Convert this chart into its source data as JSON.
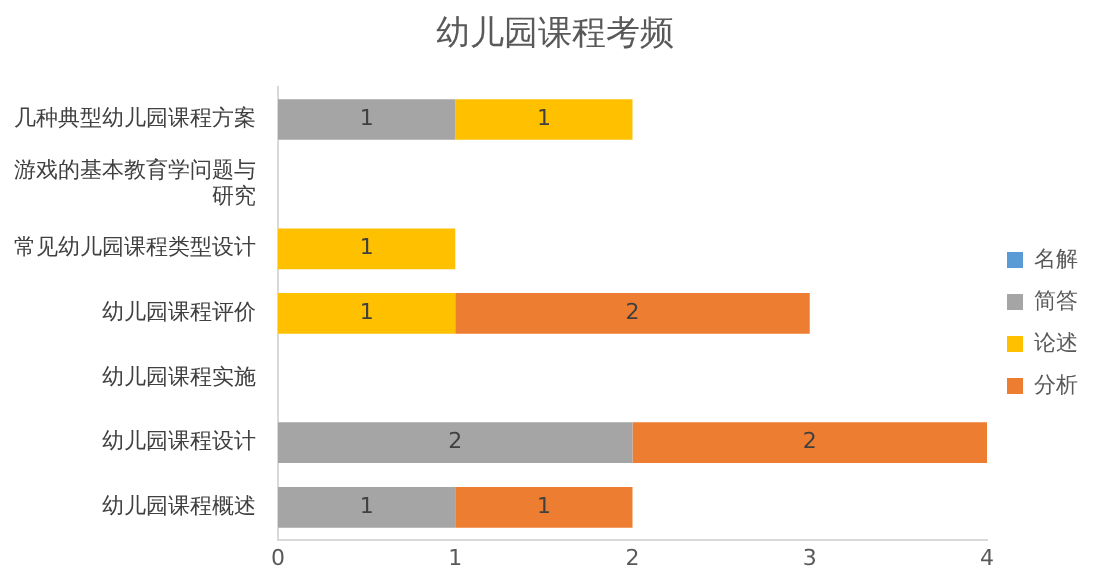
{
  "chart_data": {
    "type": "bar",
    "orientation": "horizontal",
    "stacked": true,
    "title": "幼儿园课程考频",
    "categories": [
      "几种典型幼儿园课程方案",
      "游戏的基本教育学问题与研究",
      "常见幼儿园课程类型设计",
      "幼儿园课程评价",
      "幼儿园课程实施",
      "幼儿园课程设计",
      "幼儿园课程概述"
    ],
    "series": [
      {
        "name": "名解",
        "color": "#5b9bd5",
        "values": [
          null,
          null,
          null,
          null,
          null,
          null,
          null
        ]
      },
      {
        "name": "简答",
        "color": "#a5a5a5",
        "values": [
          1,
          null,
          null,
          null,
          null,
          2,
          1
        ]
      },
      {
        "name": "论述",
        "color": "#ffc000",
        "values": [
          1,
          null,
          1,
          1,
          null,
          null,
          null
        ]
      },
      {
        "name": "分析",
        "color": "#ed7d31",
        "values": [
          null,
          null,
          null,
          2,
          null,
          2,
          1
        ]
      }
    ],
    "xlim": [
      0,
      4
    ],
    "xticks": [
      0,
      1,
      2,
      3,
      4
    ],
    "grid": false,
    "legend": "right",
    "data_labels": true
  }
}
